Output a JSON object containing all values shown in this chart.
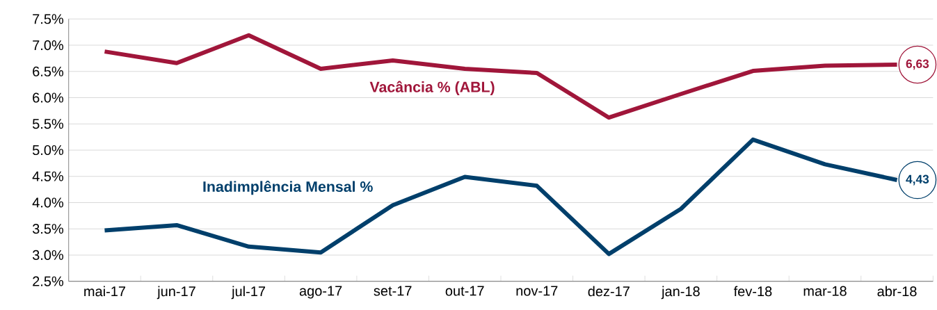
{
  "chart_data": {
    "type": "line",
    "categories": [
      "mai-17",
      "jun-17",
      "jul-17",
      "ago-17",
      "set-17",
      "out-17",
      "nov-17",
      "dez-17",
      "jan-18",
      "fev-18",
      "mar-18",
      "abr-18"
    ],
    "series": [
      {
        "name": "Vacância % (ABL)",
        "color": "#a0163a",
        "values": [
          6.88,
          6.66,
          7.19,
          6.55,
          6.71,
          6.55,
          6.47,
          5.62,
          6.07,
          6.51,
          6.61,
          6.63
        ],
        "value_labels": [
          null,
          null,
          null,
          null,
          null,
          null,
          null,
          null,
          null,
          null,
          null,
          "6,63"
        ]
      },
      {
        "name": "Inadimplência Mensal %",
        "color": "#003f6b",
        "values": [
          3.47,
          3.57,
          3.16,
          3.05,
          3.95,
          4.49,
          4.32,
          3.02,
          3.88,
          5.2,
          4.73,
          4.43
        ],
        "value_labels": [
          null,
          null,
          null,
          null,
          null,
          null,
          null,
          null,
          null,
          null,
          null,
          "4,43"
        ]
      }
    ],
    "ylim": [
      2.5,
      7.5
    ],
    "yticks": [
      {
        "value": 2.5,
        "label": "2.5%"
      },
      {
        "value": 3.0,
        "label": "3.0%"
      },
      {
        "value": 3.5,
        "label": "3.5%"
      },
      {
        "value": 4.0,
        "label": "4.0%"
      },
      {
        "value": 4.5,
        "label": "4.5%"
      },
      {
        "value": 5.0,
        "label": "5.0%"
      },
      {
        "value": 5.5,
        "label": "5.5%"
      },
      {
        "value": 6.0,
        "label": "6.0%"
      },
      {
        "value": 6.5,
        "label": "6.5%"
      },
      {
        "value": 7.0,
        "label": "7.0%"
      },
      {
        "value": 7.5,
        "label": "7.5%"
      }
    ],
    "grid": "y",
    "marker": "none",
    "line_style": "solid"
  }
}
